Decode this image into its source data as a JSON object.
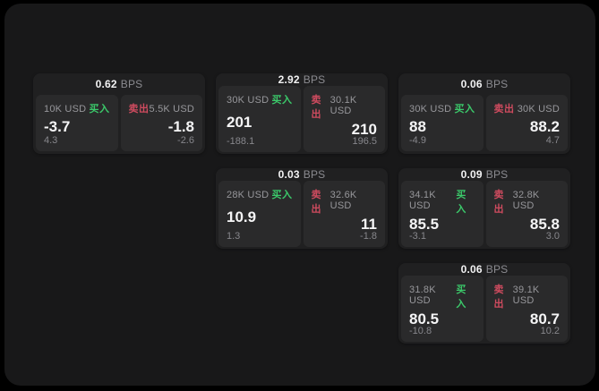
{
  "labels": {
    "buy": "买入",
    "sell": "卖出",
    "bps_suffix": "BPS"
  },
  "colors": {
    "page_bg": "#000000",
    "window_bg": "#181819",
    "card_bg": "#202021",
    "panel_bg": "#2a2a2b",
    "buy_green": "#3bc96a",
    "sell_red": "#cf4b5f"
  },
  "cards": [
    {
      "grid": {
        "row": 1,
        "col": 1
      },
      "bps": "0.62",
      "buy": {
        "amount": "10K USD",
        "value": "-3.7",
        "sub": "4.3"
      },
      "sell": {
        "amount": "5.5K USD",
        "value": "-1.8",
        "sub": "-2.6"
      }
    },
    {
      "grid": {
        "row": 1,
        "col": 2
      },
      "bps": "2.92",
      "buy": {
        "amount": "30K USD",
        "value": "201",
        "sub": "-188.1"
      },
      "sell": {
        "amount": "30.1K USD",
        "value": "210",
        "sub": "196.5"
      }
    },
    {
      "grid": {
        "row": 1,
        "col": 3
      },
      "bps": "0.06",
      "buy": {
        "amount": "30K USD",
        "value": "88",
        "sub": "-4.9"
      },
      "sell": {
        "amount": "30K USD",
        "value": "88.2",
        "sub": "4.7"
      }
    },
    {
      "grid": {
        "row": 2,
        "col": 2
      },
      "bps": "0.03",
      "buy": {
        "amount": "28K USD",
        "value": "10.9",
        "sub": "1.3"
      },
      "sell": {
        "amount": "32.6K USD",
        "value": "11",
        "sub": "-1.8"
      }
    },
    {
      "grid": {
        "row": 2,
        "col": 3
      },
      "bps": "0.09",
      "buy": {
        "amount": "34.1K USD",
        "value": "85.5",
        "sub": "-3.1"
      },
      "sell": {
        "amount": "32.8K USD",
        "value": "85.8",
        "sub": "3.0"
      }
    },
    {
      "grid": {
        "row": 3,
        "col": 3
      },
      "bps": "0.06",
      "buy": {
        "amount": "31.8K USD",
        "value": "80.5",
        "sub": "-10.8"
      },
      "sell": {
        "amount": "39.1K USD",
        "value": "80.7",
        "sub": "10.2"
      }
    }
  ]
}
